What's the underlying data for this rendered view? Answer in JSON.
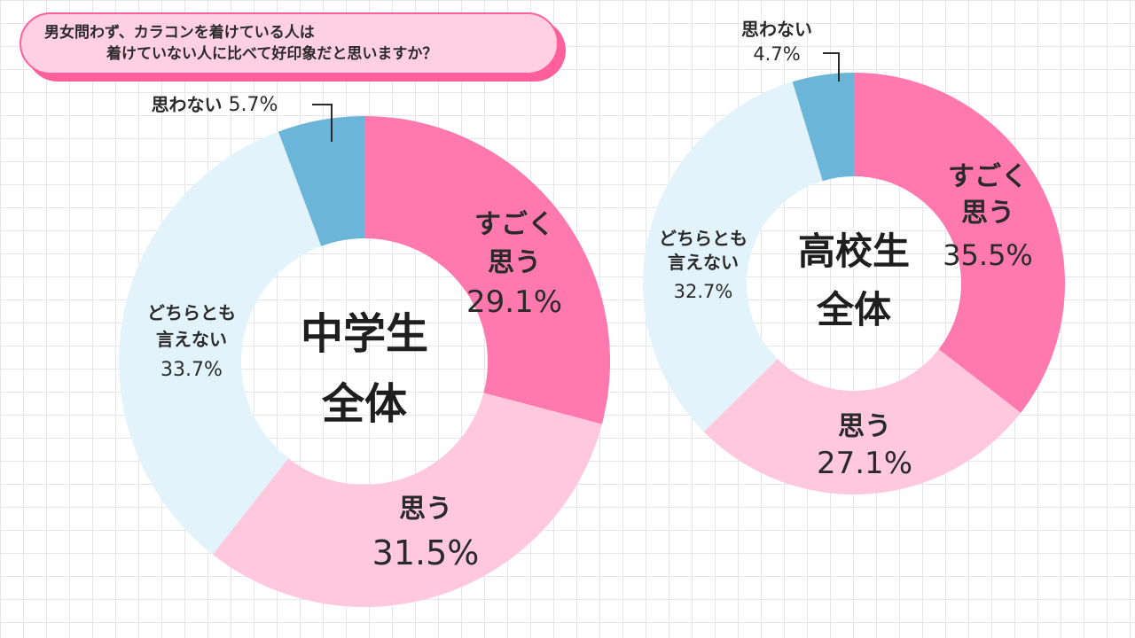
{
  "question": {
    "line1": "男女問わず、カラコンを着けている人は",
    "line2": "着けていない人に比べて好印象だと思いますか？"
  },
  "colors": {
    "sugoku": "#ff78ae",
    "omou": "#ffc8dd",
    "dochira": "#e3f3fc",
    "omowanai": "#6bb5d8"
  },
  "chart_data": [
    {
      "type": "pie",
      "title": "中学生全体",
      "center_lines": [
        "中学生",
        "全体"
      ],
      "slices": [
        {
          "label": "すごく思う",
          "label_lines": [
            "すごく",
            "思う"
          ],
          "value": 29.1,
          "value_text": "29.1%",
          "color": "#ff78ae"
        },
        {
          "label": "思う",
          "label_lines": [
            "思う"
          ],
          "value": 31.5,
          "value_text": "31.5%",
          "color": "#ffc8dd"
        },
        {
          "label": "どちらとも言えない",
          "label_lines": [
            "どちらとも",
            "言えない"
          ],
          "value": 33.7,
          "value_text": "33.7%",
          "color": "#e3f3fc"
        },
        {
          "label": "思わない",
          "label_lines": [
            "思わない"
          ],
          "value": 5.7,
          "value_text": "5.7%",
          "color": "#6bb5d8"
        }
      ]
    },
    {
      "type": "pie",
      "title": "高校生全体",
      "center_lines": [
        "高校生",
        "全体"
      ],
      "slices": [
        {
          "label": "すごく思う",
          "label_lines": [
            "すごく",
            "思う"
          ],
          "value": 35.5,
          "value_text": "35.5%",
          "color": "#ff78ae"
        },
        {
          "label": "思う",
          "label_lines": [
            "思う"
          ],
          "value": 27.1,
          "value_text": "27.1%",
          "color": "#ffc8dd"
        },
        {
          "label": "どちらとも言えない",
          "label_lines": [
            "どちらとも",
            "言えない"
          ],
          "value": 32.7,
          "value_text": "32.7%",
          "color": "#e3f3fc"
        },
        {
          "label": "思わない",
          "label_lines": [
            "思わない"
          ],
          "value": 4.7,
          "value_text": "4.7%",
          "color": "#6bb5d8"
        }
      ]
    }
  ]
}
